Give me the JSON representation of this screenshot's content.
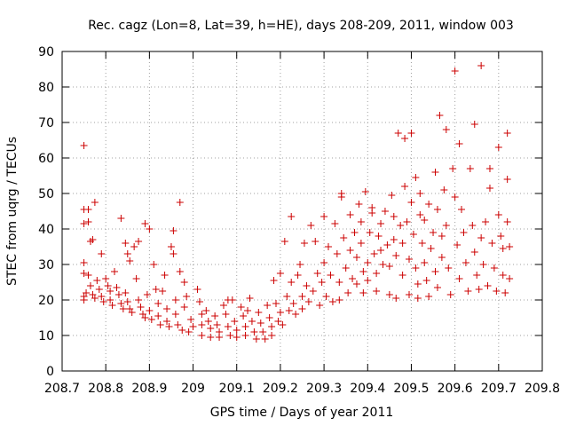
{
  "chart_data": {
    "type": "scatter",
    "title": "Rec. cagz (Lon=8, Lat=39, h=HE), days 208-209, 2011, window 003",
    "xlabel": "GPS time / Days of year 2011",
    "ylabel": "STEC from uqrg / TECUs",
    "xlim": [
      208.7,
      209.8
    ],
    "ylim": [
      0,
      90
    ],
    "xticks": [
      208.7,
      208.8,
      208.9,
      209.0,
      209.1,
      209.2,
      209.3,
      209.4,
      209.5,
      209.6,
      209.7,
      209.8
    ],
    "xtick_labels": [
      "208.7",
      "208.8",
      "208.9",
      "209",
      "209.1",
      "209.2",
      "209.3",
      "209.4",
      "209.5",
      "209.6",
      "209.7",
      "209.8"
    ],
    "yticks": [
      0,
      10,
      20,
      30,
      40,
      50,
      60,
      70,
      80,
      90
    ],
    "ytick_labels": [
      "0",
      "10",
      "20",
      "30",
      "40",
      "50",
      "60",
      "70",
      "80",
      "90"
    ],
    "marker": "+",
    "color": "#cc0000",
    "series": [
      {
        "name": "STEC",
        "points": [
          [
            208.75,
            63.5
          ],
          [
            208.75,
            45.5
          ],
          [
            208.76,
            45.5
          ],
          [
            208.75,
            41.5
          ],
          [
            208.76,
            42.0
          ],
          [
            208.765,
            36.5
          ],
          [
            208.775,
            47.5
          ],
          [
            208.77,
            37.0
          ],
          [
            208.75,
            30.5
          ],
          [
            208.75,
            27.5
          ],
          [
            208.755,
            22.0
          ],
          [
            208.75,
            21.0
          ],
          [
            208.75,
            20.0
          ],
          [
            208.76,
            27.0
          ],
          [
            208.765,
            24.0
          ],
          [
            208.77,
            21.5
          ],
          [
            208.775,
            20.5
          ],
          [
            208.78,
            25.5
          ],
          [
            208.785,
            23.0
          ],
          [
            208.79,
            21.0
          ],
          [
            208.795,
            19.5
          ],
          [
            208.79,
            33.0
          ],
          [
            208.8,
            26.0
          ],
          [
            208.805,
            24.0
          ],
          [
            208.81,
            22.5
          ],
          [
            208.81,
            20.0
          ],
          [
            208.815,
            18.5
          ],
          [
            208.82,
            28.0
          ],
          [
            208.825,
            23.5
          ],
          [
            208.83,
            21.5
          ],
          [
            208.835,
            19.0
          ],
          [
            208.84,
            17.5
          ],
          [
            208.835,
            43.0
          ],
          [
            208.845,
            36.0
          ],
          [
            208.85,
            33.0
          ],
          [
            208.855,
            31.0
          ],
          [
            208.845,
            22.0
          ],
          [
            208.85,
            19.5
          ],
          [
            208.855,
            17.5
          ],
          [
            208.86,
            16.5
          ],
          [
            208.865,
            35.0
          ],
          [
            208.87,
            26.0
          ],
          [
            208.875,
            36.5
          ],
          [
            208.875,
            20.0
          ],
          [
            208.88,
            18.0
          ],
          [
            208.885,
            16.0
          ],
          [
            208.89,
            15.0
          ],
          [
            208.89,
            41.5
          ],
          [
            208.895,
            21.5
          ],
          [
            208.9,
            40.0
          ],
          [
            208.9,
            17.0
          ],
          [
            208.905,
            14.5
          ],
          [
            208.91,
            30.0
          ],
          [
            208.915,
            23.0
          ],
          [
            208.92,
            19.0
          ],
          [
            208.92,
            15.5
          ],
          [
            208.925,
            13.0
          ],
          [
            208.93,
            22.5
          ],
          [
            208.935,
            27.0
          ],
          [
            208.94,
            17.5
          ],
          [
            208.94,
            14.0
          ],
          [
            208.945,
            12.5
          ],
          [
            208.95,
            35.0
          ],
          [
            208.955,
            33.0
          ],
          [
            208.955,
            39.5
          ],
          [
            208.96,
            20.0
          ],
          [
            208.96,
            16.0
          ],
          [
            208.965,
            13.0
          ],
          [
            208.97,
            47.5
          ],
          [
            208.97,
            28.0
          ],
          [
            208.975,
            11.5
          ],
          [
            208.98,
            25.0
          ],
          [
            208.98,
            18.0
          ],
          [
            208.985,
            21.0
          ],
          [
            208.99,
            11.0
          ],
          [
            208.995,
            14.5
          ],
          [
            209.0,
            12.5
          ],
          [
            209.01,
            23.0
          ],
          [
            209.015,
            19.5
          ],
          [
            209.02,
            16.0
          ],
          [
            209.02,
            13.0
          ],
          [
            209.02,
            10.0
          ],
          [
            209.03,
            17.0
          ],
          [
            209.035,
            14.0
          ],
          [
            209.04,
            12.0
          ],
          [
            209.04,
            9.5
          ],
          [
            209.05,
            15.5
          ],
          [
            209.055,
            13.0
          ],
          [
            209.06,
            11.0
          ],
          [
            209.06,
            9.5
          ],
          [
            209.07,
            18.5
          ],
          [
            209.075,
            16.0
          ],
          [
            209.08,
            20.0
          ],
          [
            209.08,
            12.5
          ],
          [
            209.085,
            10.0
          ],
          [
            209.09,
            20.0
          ],
          [
            209.095,
            14.0
          ],
          [
            209.1,
            11.5
          ],
          [
            209.1,
            9.5
          ],
          [
            209.11,
            18.0
          ],
          [
            209.115,
            15.5
          ],
          [
            209.12,
            12.5
          ],
          [
            209.12,
            10.0
          ],
          [
            209.125,
            17.0
          ],
          [
            209.13,
            20.5
          ],
          [
            209.135,
            14.0
          ],
          [
            209.14,
            11.0
          ],
          [
            209.145,
            9.0
          ],
          [
            209.15,
            16.5
          ],
          [
            209.155,
            13.5
          ],
          [
            209.16,
            11.0
          ],
          [
            209.165,
            9.0
          ],
          [
            209.17,
            18.5
          ],
          [
            209.175,
            15.0
          ],
          [
            209.18,
            12.5
          ],
          [
            209.18,
            10.0
          ],
          [
            209.185,
            25.5
          ],
          [
            209.19,
            19.0
          ],
          [
            209.195,
            14.0
          ],
          [
            209.2,
            16.5
          ],
          [
            209.2,
            27.5
          ],
          [
            209.205,
            13.0
          ],
          [
            209.21,
            36.5
          ],
          [
            209.215,
            21.0
          ],
          [
            209.22,
            17.0
          ],
          [
            209.225,
            43.5
          ],
          [
            209.225,
            25.0
          ],
          [
            209.23,
            19.0
          ],
          [
            209.235,
            16.0
          ],
          [
            209.24,
            27.0
          ],
          [
            209.245,
            30.0
          ],
          [
            209.25,
            21.0
          ],
          [
            209.25,
            17.5
          ],
          [
            209.255,
            36.0
          ],
          [
            209.26,
            24.0
          ],
          [
            209.265,
            19.5
          ],
          [
            209.27,
            41.0
          ],
          [
            209.275,
            22.5
          ],
          [
            209.28,
            36.5
          ],
          [
            209.285,
            27.5
          ],
          [
            209.29,
            18.5
          ],
          [
            209.295,
            25.0
          ],
          [
            209.3,
            43.5
          ],
          [
            209.3,
            30.5
          ],
          [
            209.305,
            21.0
          ],
          [
            209.31,
            35.0
          ],
          [
            209.315,
            27.0
          ],
          [
            209.32,
            19.5
          ],
          [
            209.325,
            41.5
          ],
          [
            209.33,
            33.0
          ],
          [
            209.335,
            25.0
          ],
          [
            209.335,
            20.0
          ],
          [
            209.34,
            50.0
          ],
          [
            209.34,
            49.0
          ],
          [
            209.345,
            37.5
          ],
          [
            209.35,
            29.0
          ],
          [
            209.355,
            22.0
          ],
          [
            209.36,
            44.0
          ],
          [
            209.36,
            34.0
          ],
          [
            209.365,
            26.0
          ],
          [
            209.37,
            39.0
          ],
          [
            209.375,
            32.0
          ],
          [
            209.375,
            24.5
          ],
          [
            209.38,
            47.0
          ],
          [
            209.385,
            42.0
          ],
          [
            209.385,
            36.0
          ],
          [
            209.39,
            28.0
          ],
          [
            209.39,
            22.0
          ],
          [
            209.395,
            50.5
          ],
          [
            209.4,
            30.5
          ],
          [
            209.4,
            25.5
          ],
          [
            209.405,
            39.0
          ],
          [
            209.41,
            46.0
          ],
          [
            209.41,
            44.5
          ],
          [
            209.415,
            33.0
          ],
          [
            209.42,
            27.5
          ],
          [
            209.42,
            22.5
          ],
          [
            209.425,
            38.0
          ],
          [
            209.43,
            41.5
          ],
          [
            209.43,
            34.0
          ],
          [
            209.435,
            30.0
          ],
          [
            209.44,
            45.0
          ],
          [
            209.445,
            35.5
          ],
          [
            209.45,
            29.5
          ],
          [
            209.45,
            21.5
          ],
          [
            209.455,
            49.5
          ],
          [
            209.46,
            43.5
          ],
          [
            209.46,
            37.0
          ],
          [
            209.465,
            32.5
          ],
          [
            209.465,
            20.5
          ],
          [
            209.47,
            67.0
          ],
          [
            209.475,
            41.0
          ],
          [
            209.48,
            36.0
          ],
          [
            209.48,
            27.0
          ],
          [
            209.485,
            65.5
          ],
          [
            209.485,
            52.0
          ],
          [
            209.49,
            42.0
          ],
          [
            209.495,
            31.5
          ],
          [
            209.495,
            21.5
          ],
          [
            209.5,
            67.0
          ],
          [
            209.5,
            47.5
          ],
          [
            209.505,
            38.5
          ],
          [
            209.51,
            54.5
          ],
          [
            209.51,
            29.0
          ],
          [
            209.515,
            24.5
          ],
          [
            209.515,
            20.5
          ],
          [
            209.52,
            50.0
          ],
          [
            209.52,
            44.0
          ],
          [
            209.525,
            36.0
          ],
          [
            209.53,
            42.5
          ],
          [
            209.53,
            30.5
          ],
          [
            209.535,
            25.5
          ],
          [
            209.54,
            47.0
          ],
          [
            209.54,
            21.0
          ],
          [
            209.545,
            34.5
          ],
          [
            209.55,
            39.0
          ],
          [
            209.555,
            56.0
          ],
          [
            209.555,
            28.0
          ],
          [
            209.56,
            45.5
          ],
          [
            209.56,
            23.5
          ],
          [
            209.565,
            72.0
          ],
          [
            209.57,
            38.0
          ],
          [
            209.57,
            32.0
          ],
          [
            209.575,
            51.0
          ],
          [
            209.58,
            68.0
          ],
          [
            209.58,
            41.0
          ],
          [
            209.585,
            29.0
          ],
          [
            209.59,
            21.5
          ],
          [
            209.595,
            57.0
          ],
          [
            209.6,
            84.5
          ],
          [
            209.6,
            49.0
          ],
          [
            209.605,
            35.5
          ],
          [
            209.61,
            64.0
          ],
          [
            209.61,
            26.0
          ],
          [
            209.615,
            45.5
          ],
          [
            209.62,
            39.0
          ],
          [
            209.625,
            30.5
          ],
          [
            209.63,
            22.5
          ],
          [
            209.635,
            57.0
          ],
          [
            209.64,
            41.0
          ],
          [
            209.645,
            69.5
          ],
          [
            209.645,
            33.5
          ],
          [
            209.65,
            27.0
          ],
          [
            209.655,
            23.0
          ],
          [
            209.66,
            86.0
          ],
          [
            209.66,
            37.5
          ],
          [
            209.665,
            30.0
          ],
          [
            209.67,
            42.0
          ],
          [
            209.675,
            24.0
          ],
          [
            209.68,
            57.0
          ],
          [
            209.68,
            51.5
          ],
          [
            209.685,
            36.0
          ],
          [
            209.69,
            29.0
          ],
          [
            209.695,
            22.5
          ],
          [
            209.7,
            63.0
          ],
          [
            209.7,
            44.0
          ],
          [
            209.705,
            38.0
          ],
          [
            209.71,
            34.5
          ],
          [
            209.71,
            27.0
          ],
          [
            209.715,
            22.0
          ],
          [
            209.72,
            67.0
          ],
          [
            209.72,
            54.0
          ],
          [
            209.72,
            42.0
          ],
          [
            209.725,
            35.0
          ],
          [
            209.725,
            26.0
          ]
        ]
      }
    ]
  }
}
